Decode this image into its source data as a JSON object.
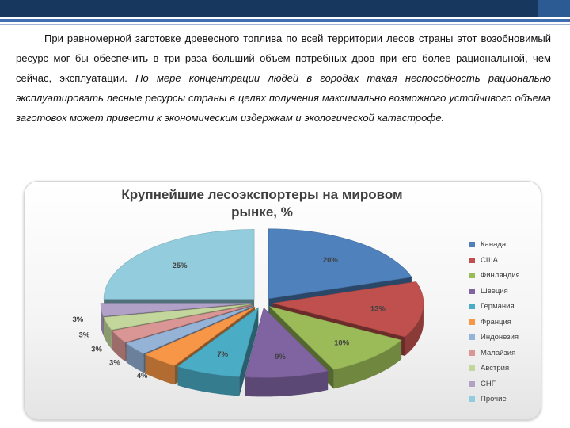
{
  "text": {
    "normal": "При равномерной заготовке древесного топлива по всей территории лесов страны этот возобновимый ресурс мог бы обеспечить в три раза больший объем потребных дров при его более рациональной, чем сейчас, эксплуатации.",
    "italic": "По мере концентрации людей в городах такая неспособность рационально эксплуатировать лесные ресурсы страны в целях получения максимально возможного устойчивого объема заготовок может привести к экономическим издержкам и экологической катастрофе."
  },
  "chart_data": {
    "type": "pie",
    "title": "Крупнейшие лесоэкспортеры на мировом рынке, %",
    "categories": [
      "Канада",
      "США",
      "Финляндия",
      "Швеция",
      "Германия",
      "Франция",
      "Индонезия",
      "Малайзия",
      "Австрия",
      "СНГ",
      "Прочие"
    ],
    "values": [
      20,
      13,
      10,
      9,
      7,
      4,
      3,
      3,
      3,
      3,
      25
    ],
    "data_labels": [
      "20%",
      "13%",
      "10%",
      "9%",
      "7%",
      "4%",
      "3%",
      "3%",
      "3%",
      "3%",
      "25%"
    ],
    "colors": [
      "#4f81bd",
      "#c0504d",
      "#9bbb59",
      "#8064a2",
      "#4bacc6",
      "#f79646",
      "#95b3d7",
      "#d99694",
      "#c3d69b",
      "#b2a1c7",
      "#93cddd"
    ],
    "legend": "right",
    "exploded": true,
    "style": "3d"
  }
}
